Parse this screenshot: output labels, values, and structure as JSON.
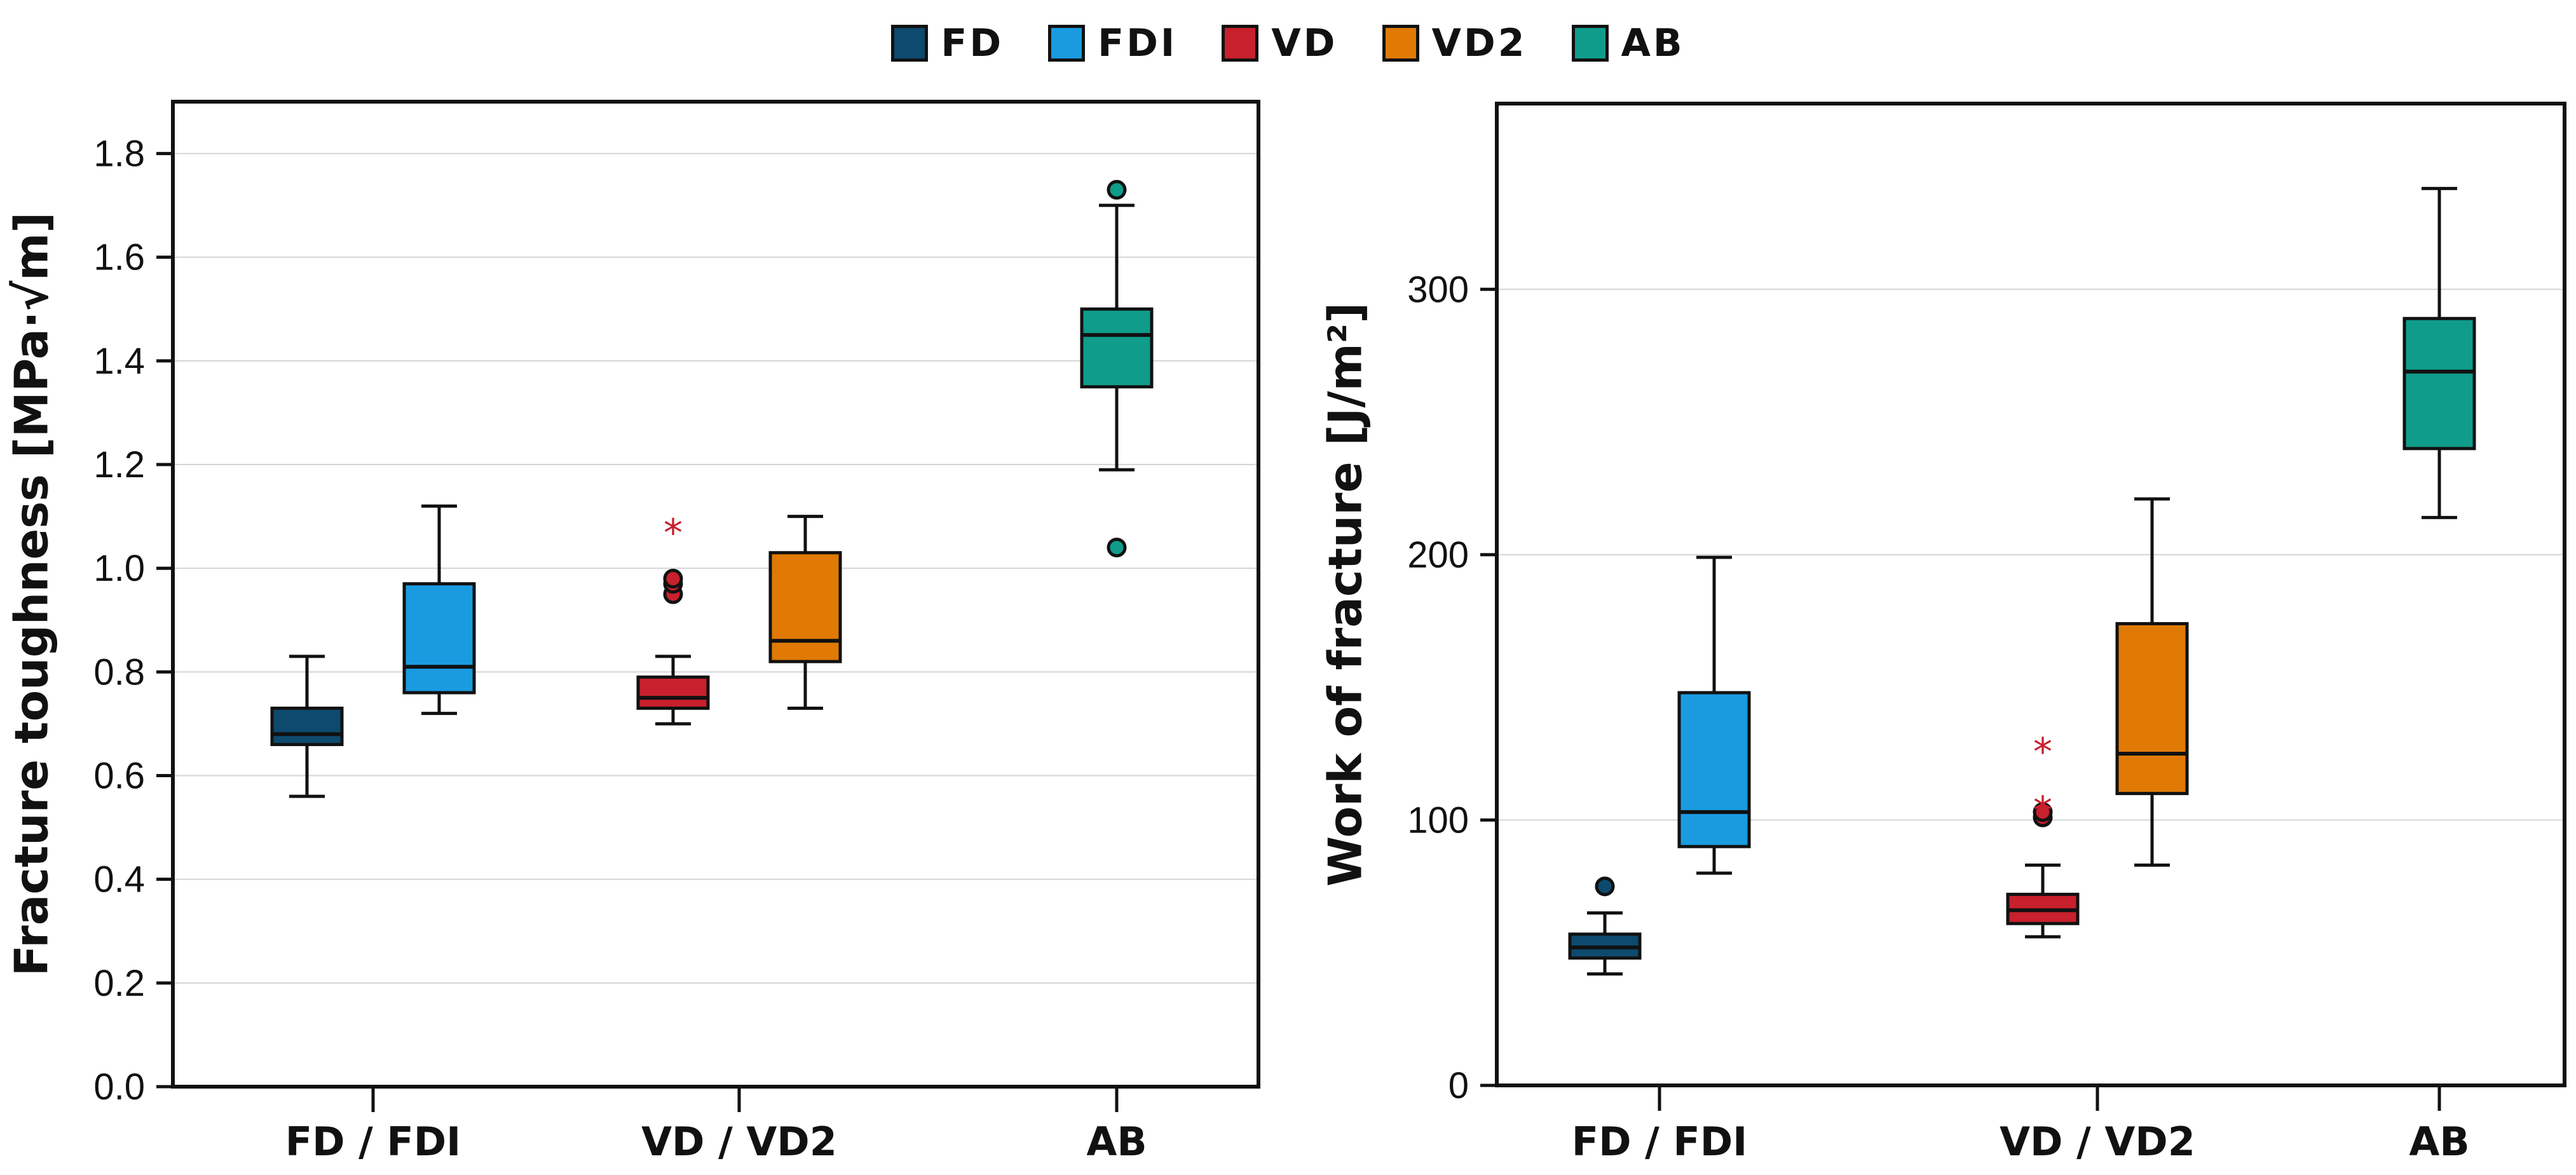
{
  "legend": [
    {
      "name": "FD",
      "color": "#0d4a6e"
    },
    {
      "name": "FDI",
      "color": "#1a9be0"
    },
    {
      "name": "VD",
      "color": "#c8202d"
    },
    {
      "name": "VD2",
      "color": "#e07a05"
    },
    {
      "name": "AB",
      "color": "#0f9c8a"
    }
  ],
  "chart_data": [
    {
      "type": "boxplot",
      "ylabel": "Fracture toughness [MPa·√m]",
      "xlabel": "",
      "ylim": [
        0,
        1.9
      ],
      "yticks": [
        0.0,
        0.2,
        0.4,
        0.6,
        0.8,
        1.0,
        1.2,
        1.4,
        1.6,
        1.8
      ],
      "ytick_labels": [
        "0.0",
        "0.2",
        "0.4",
        "0.6",
        "0.8",
        "1.0",
        "1.2",
        "1.4",
        "1.6",
        "1.8"
      ],
      "grid": true,
      "categories": [
        "FD / FDI",
        "VD / VD2",
        "AB"
      ],
      "series": [
        {
          "name": "FD",
          "category": 0,
          "pos": 0.84,
          "min": 0.56,
          "q1": 0.66,
          "median": 0.68,
          "q3": 0.73,
          "max": 0.83,
          "outliers": [],
          "extremes": []
        },
        {
          "name": "FDI",
          "category": 0,
          "pos": 1.16,
          "min": 0.72,
          "q1": 0.76,
          "median": 0.81,
          "q3": 0.97,
          "max": 1.12,
          "outliers": [],
          "extremes": []
        },
        {
          "name": "VD",
          "category": 1,
          "pos": 1.84,
          "min": 0.7,
          "q1": 0.73,
          "median": 0.75,
          "q3": 0.79,
          "max": 0.83,
          "outliers": [
            0.95,
            0.97,
            0.98
          ],
          "extremes": [
            1.08
          ]
        },
        {
          "name": "VD2",
          "category": 1,
          "pos": 2.16,
          "min": 0.73,
          "q1": 0.82,
          "median": 0.86,
          "q3": 1.03,
          "max": 1.1,
          "outliers": [],
          "extremes": []
        },
        {
          "name": "AB",
          "category": 2,
          "pos": 3.0,
          "min": 1.19,
          "q1": 1.35,
          "median": 1.45,
          "q3": 1.5,
          "max": 1.7,
          "outliers": [
            1.73,
            1.04
          ],
          "extremes": []
        }
      ]
    },
    {
      "type": "boxplot",
      "ylabel": "Work of fracture [J/m²]",
      "xlabel": "",
      "ylim": [
        0,
        370
      ],
      "yticks": [
        0,
        100,
        200,
        300
      ],
      "ytick_labels": [
        "0",
        "100",
        "200",
        "300"
      ],
      "grid": true,
      "categories": [
        "FD / FDI",
        "VD / VD2",
        "AB"
      ],
      "series": [
        {
          "name": "FD",
          "category": 0,
          "pos": 0.84,
          "min": 42,
          "q1": 48,
          "median": 52,
          "q3": 57,
          "max": 65,
          "outliers": [
            75
          ],
          "extremes": []
        },
        {
          "name": "FDI",
          "category": 0,
          "pos": 1.16,
          "min": 80,
          "q1": 90,
          "median": 103,
          "q3": 148,
          "max": 199,
          "outliers": [],
          "extremes": []
        },
        {
          "name": "VD",
          "category": 1,
          "pos": 1.84,
          "min": 56,
          "q1": 61,
          "median": 66,
          "q3": 72,
          "max": 83,
          "outliers": [
            101,
            103
          ],
          "extremes": [
            106,
            128
          ]
        },
        {
          "name": "VD2",
          "category": 1,
          "pos": 2.16,
          "min": 83,
          "q1": 110,
          "median": 125,
          "q3": 174,
          "max": 221,
          "outliers": [],
          "extremes": []
        },
        {
          "name": "AB",
          "category": 2,
          "pos": 3.0,
          "min": 214,
          "q1": 240,
          "median": 269,
          "q3": 289,
          "max": 338,
          "outliers": [],
          "extremes": []
        }
      ]
    }
  ]
}
